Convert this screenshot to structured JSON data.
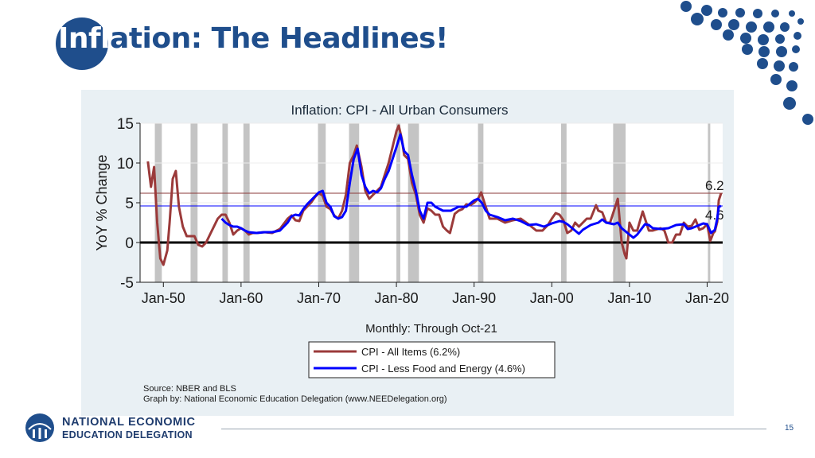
{
  "slide": {
    "title_prefix": "Infl",
    "title_rest": "ation: The Headlines!",
    "page_number": "15",
    "org_line1": "NATIONAL ECONOMIC",
    "org_line2": "EDUCATION DELEGATION",
    "accent": "#1f4e8c"
  },
  "chart_data": {
    "type": "line",
    "title": "Inflation: CPI - All Urban Consumers",
    "ylabel": "YoY % Change",
    "xlabel": "Monthly: Through Oct-21",
    "xlim": [
      1947,
      2022
    ],
    "ylim": [
      -5,
      15
    ],
    "yticks": [
      15,
      10,
      5,
      0,
      -5
    ],
    "xticks": [
      {
        "value": 1950,
        "label": "Jan-50"
      },
      {
        "value": 1960,
        "label": "Jan-60"
      },
      {
        "value": 1970,
        "label": "Jan-70"
      },
      {
        "value": 1980,
        "label": "Jan-80"
      },
      {
        "value": 1990,
        "label": "Jan-90"
      },
      {
        "value": 2000,
        "label": "Jan-00"
      },
      {
        "value": 2010,
        "label": "Jan-10"
      },
      {
        "value": 2020,
        "label": "Jan-20"
      }
    ],
    "grid": true,
    "recessions": [
      [
        1948.9,
        1949.8
      ],
      [
        1953.5,
        1954.4
      ],
      [
        1957.6,
        1958.3
      ],
      [
        1960.3,
        1961.1
      ],
      [
        1969.9,
        1970.9
      ],
      [
        1973.9,
        1975.2
      ],
      [
        1980.0,
        1980.5
      ],
      [
        1981.5,
        1982.9
      ],
      [
        1990.5,
        1991.2
      ],
      [
        2001.2,
        2001.9
      ],
      [
        2007.9,
        2009.5
      ],
      [
        2020.1,
        2020.4
      ]
    ],
    "reference_lines": [
      {
        "y": 6.2,
        "label": "6.2",
        "color": "#8b3a3a"
      },
      {
        "y": 4.6,
        "label": "4.6",
        "color": "#0000ff"
      }
    ],
    "zero_line": true,
    "legend_position": "bottom-center",
    "series": [
      {
        "name": "CPI - All Items (6.2%)",
        "color": "#9b3a3a",
        "x": [
          1948,
          1948.4,
          1948.8,
          1949.2,
          1949.6,
          1950.0,
          1950.5,
          1950.8,
          1951.2,
          1951.6,
          1952.0,
          1952.5,
          1953.0,
          1953.5,
          1954.0,
          1954.5,
          1955.0,
          1955.5,
          1956.0,
          1956.5,
          1957.0,
          1957.5,
          1958.0,
          1958.5,
          1959.0,
          1959.5,
          1960.0,
          1960.5,
          1961.0,
          1961.5,
          1962.0,
          1963.0,
          1964.0,
          1965.0,
          1966.0,
          1966.5,
          1967.0,
          1967.5,
          1968.0,
          1968.5,
          1969.0,
          1969.5,
          1970.0,
          1970.5,
          1971.0,
          1971.5,
          1972.0,
          1972.5,
          1973.0,
          1973.5,
          1974.0,
          1974.5,
          1974.9,
          1975.5,
          1976.0,
          1976.5,
          1977.0,
          1977.5,
          1978.0,
          1978.5,
          1979.0,
          1979.5,
          1980.0,
          1980.3,
          1980.7,
          1981.0,
          1981.5,
          1982.0,
          1982.5,
          1983.0,
          1983.5,
          1984.0,
          1984.5,
          1985.0,
          1985.5,
          1986.0,
          1986.5,
          1986.9,
          1987.5,
          1988.0,
          1988.5,
          1989.0,
          1989.5,
          1990.0,
          1990.5,
          1990.9,
          1991.5,
          1992.0,
          1993.0,
          1994.0,
          1995.0,
          1996.0,
          1997.0,
          1998.0,
          1998.8,
          1999.5,
          2000.0,
          2000.5,
          2001.0,
          2001.5,
          2002.0,
          2002.5,
          2003.0,
          2003.5,
          2004.0,
          2004.5,
          2005.0,
          2005.7,
          2006.0,
          2006.5,
          2007.0,
          2007.5,
          2008.0,
          2008.5,
          2009.0,
          2009.4,
          2009.6,
          2010.0,
          2010.5,
          2011.0,
          2011.7,
          2012.0,
          2012.5,
          2013.0,
          2014.0,
          2014.5,
          2015.0,
          2015.5,
          2016.0,
          2016.5,
          2017.0,
          2017.5,
          2018.0,
          2018.5,
          2019.0,
          2019.5,
          2020.0,
          2020.4,
          2020.8,
          2021.0,
          2021.3,
          2021.5,
          2021.8
        ],
        "y": [
          10.2,
          7.0,
          9.5,
          2.5,
          -2.0,
          -2.8,
          -1.0,
          2.5,
          8.0,
          9.0,
          4.5,
          2.0,
          0.8,
          0.8,
          0.8,
          -0.3,
          -0.5,
          0.0,
          1.0,
          2.0,
          3.0,
          3.5,
          3.5,
          2.5,
          1.0,
          1.5,
          1.8,
          1.5,
          1.0,
          1.2,
          1.2,
          1.3,
          1.2,
          1.7,
          3.0,
          3.4,
          2.8,
          2.7,
          4.0,
          4.5,
          5.0,
          5.7,
          6.2,
          5.9,
          4.5,
          4.2,
          3.4,
          3.0,
          4.0,
          6.0,
          10.0,
          11.0,
          12.2,
          9.5,
          6.5,
          5.5,
          6.0,
          6.5,
          7.0,
          8.5,
          10.0,
          12.0,
          14.0,
          14.7,
          13.0,
          11.0,
          10.5,
          7.5,
          6.0,
          3.5,
          2.5,
          4.3,
          4.0,
          3.5,
          3.5,
          2.0,
          1.5,
          1.2,
          3.6,
          4.0,
          4.2,
          4.8,
          4.7,
          5.0,
          5.5,
          6.3,
          4.5,
          3.0,
          3.0,
          2.5,
          2.8,
          3.0,
          2.3,
          1.5,
          1.5,
          2.2,
          3.0,
          3.7,
          3.5,
          2.8,
          1.2,
          1.5,
          2.5,
          2.0,
          2.5,
          3.0,
          3.0,
          4.7,
          4.0,
          3.8,
          2.5,
          2.5,
          4.0,
          5.5,
          0.0,
          -1.5,
          -2.0,
          2.5,
          1.5,
          1.5,
          3.9,
          3.0,
          1.5,
          1.5,
          1.8,
          1.5,
          0.0,
          0.0,
          1.0,
          1.0,
          2.5,
          2.0,
          2.1,
          2.9,
          1.6,
          1.8,
          2.3,
          0.2,
          1.2,
          1.4,
          2.6,
          5.3,
          6.2
        ]
      },
      {
        "name": "CPI - Less Food and Energy (4.6%)",
        "color": "#0000ff",
        "x": [
          1957.5,
          1958.0,
          1958.5,
          1959.0,
          1959.5,
          1960.0,
          1960.5,
          1961.0,
          1962.0,
          1963.0,
          1964.0,
          1965.0,
          1966.0,
          1966.5,
          1967.0,
          1967.5,
          1968.0,
          1968.5,
          1969.0,
          1969.5,
          1970.0,
          1970.5,
          1971.0,
          1971.5,
          1972.0,
          1972.5,
          1973.0,
          1973.5,
          1974.0,
          1974.5,
          1975.0,
          1975.5,
          1976.0,
          1976.5,
          1977.0,
          1977.5,
          1978.0,
          1978.5,
          1979.0,
          1979.5,
          1980.0,
          1980.5,
          1981.0,
          1981.5,
          1982.0,
          1982.5,
          1983.0,
          1983.5,
          1984.0,
          1984.5,
          1985.0,
          1986.0,
          1987.0,
          1988.0,
          1989.0,
          1990.0,
          1990.5,
          1991.0,
          1991.5,
          1992.0,
          1993.0,
          1994.0,
          1995.0,
          1996.0,
          1997.0,
          1998.0,
          1999.0,
          2000.0,
          2001.0,
          2001.5,
          2002.0,
          2003.0,
          2003.5,
          2004.0,
          2005.0,
          2006.0,
          2006.5,
          2007.0,
          2008.0,
          2008.5,
          2009.0,
          2010.0,
          2010.5,
          2011.0,
          2012.0,
          2012.5,
          2013.0,
          2014.0,
          2015.0,
          2016.0,
          2017.0,
          2017.5,
          2018.0,
          2019.0,
          2019.5,
          2020.0,
          2020.5,
          2021.0,
          2021.3,
          2021.5,
          2021.8
        ],
        "y": [
          3.0,
          2.5,
          2.2,
          2.0,
          2.0,
          1.8,
          1.5,
          1.3,
          1.2,
          1.3,
          1.3,
          1.5,
          2.5,
          3.3,
          3.5,
          3.4,
          4.2,
          4.8,
          5.3,
          5.8,
          6.3,
          6.5,
          5.0,
          4.5,
          3.3,
          3.0,
          3.2,
          4.0,
          7.5,
          10.5,
          11.8,
          8.5,
          7.0,
          6.2,
          6.5,
          6.3,
          6.8,
          8.0,
          9.0,
          10.5,
          12.0,
          13.6,
          11.5,
          11.0,
          8.5,
          6.5,
          4.0,
          3.0,
          5.0,
          5.0,
          4.5,
          4.0,
          4.0,
          4.5,
          4.5,
          5.3,
          5.5,
          5.0,
          4.0,
          3.5,
          3.2,
          2.8,
          3.0,
          2.7,
          2.2,
          2.3,
          2.0,
          2.4,
          2.7,
          2.6,
          2.3,
          1.5,
          1.1,
          1.6,
          2.2,
          2.5,
          2.9,
          2.5,
          2.3,
          2.5,
          1.8,
          1.0,
          0.6,
          1.0,
          2.3,
          2.2,
          1.8,
          1.7,
          1.8,
          2.2,
          2.3,
          1.7,
          1.8,
          2.2,
          2.4,
          2.3,
          1.2,
          1.6,
          3.0,
          4.5,
          4.6
        ]
      }
    ],
    "legend": [
      "CPI - All Items (6.2%)",
      "CPI - Less Food and Energy (4.6%)"
    ],
    "source_line1": "Source: NBER and BLS",
    "source_line2": "Graph by: National Economic Education Delegation (www.NEEDelegation.org)"
  }
}
